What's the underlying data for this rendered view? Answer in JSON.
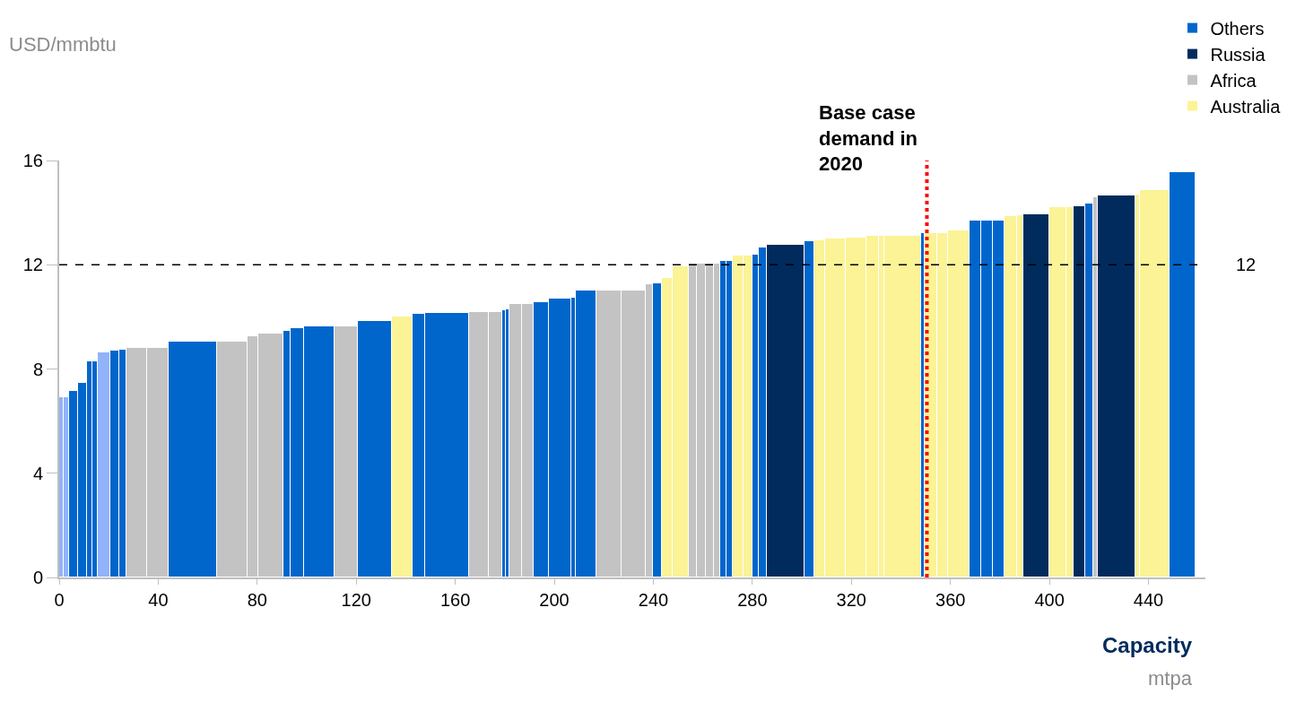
{
  "chart_data": {
    "type": "histogram",
    "ylabel": "USD/mmbtu",
    "xlabel": "Capacity",
    "annotations": [
      "mtpa"
    ],
    "bins": [
      0,
      1.8,
      4.0,
      7.5,
      11.1,
      13.3,
      15.5,
      20.5,
      24.1,
      27.0,
      35.6,
      44.2,
      63.6,
      76.2,
      80.5,
      90.6,
      93.5,
      98.8,
      111.1,
      120.8,
      134.4,
      142.7,
      147.7,
      165.7,
      173.6,
      179.0,
      180.4,
      181.9,
      186.9,
      191.6,
      197.7,
      207.0,
      208.5,
      217.1,
      227.2,
      236.9,
      239.8,
      243.4,
      247.7,
      254.5,
      257.7,
      261.3,
      264.6,
      267.1,
      269.6,
      272.1,
      276.4,
      280.0,
      282.5,
      285.8,
      300.9,
      305.2,
      309.5,
      317.8,
      326.0,
      331.1,
      333.2,
      348.3,
      349.7,
      354.8,
      359.1,
      367.7,
      372.4,
      377.1,
      381.7,
      386.8,
      389.6,
      400.1,
      406.9,
      409.8,
      414.5,
      417.7,
      419.5,
      434.6,
      436.7,
      448.6,
      459.0
    ],
    "series": [
      {
        "name": "Others",
        "color": "#0066cc",
        "values": [
          null,
          null,
          7.15,
          7.45,
          8.3,
          8.3,
          null,
          8.7,
          8.75,
          null,
          null,
          9.05,
          null,
          null,
          null,
          9.45,
          9.55,
          9.65,
          null,
          9.85,
          null,
          10.1,
          10.15,
          null,
          null,
          10.25,
          10.3,
          null,
          null,
          10.55,
          10.7,
          10.75,
          11.0,
          null,
          null,
          null,
          11.3,
          null,
          null,
          null,
          null,
          null,
          null,
          12.15,
          12.15,
          null,
          null,
          12.4,
          12.65,
          null,
          12.9,
          null,
          null,
          null,
          null,
          null,
          null,
          13.2,
          null,
          null,
          null,
          13.7,
          13.7,
          13.7,
          null,
          null,
          null,
          null,
          null,
          null,
          14.35,
          null,
          null,
          null,
          null,
          15.55
        ]
      },
      {
        "name": "Russia",
        "color": "#002b5c",
        "values": [
          null,
          null,
          null,
          null,
          null,
          null,
          null,
          null,
          null,
          null,
          null,
          null,
          null,
          null,
          null,
          null,
          null,
          null,
          null,
          null,
          null,
          null,
          null,
          null,
          null,
          null,
          null,
          null,
          null,
          null,
          null,
          null,
          null,
          null,
          null,
          null,
          null,
          null,
          null,
          null,
          null,
          null,
          null,
          null,
          null,
          null,
          null,
          null,
          null,
          12.75,
          null,
          null,
          null,
          null,
          null,
          null,
          null,
          null,
          null,
          null,
          null,
          null,
          null,
          null,
          null,
          null,
          13.95,
          null,
          null,
          14.25,
          null,
          null,
          14.65,
          null,
          null,
          null
        ]
      },
      {
        "name": "Africa",
        "color": "#c3c3c3",
        "values": [
          null,
          null,
          null,
          null,
          null,
          null,
          null,
          null,
          null,
          8.8,
          8.8,
          null,
          9.05,
          9.25,
          9.35,
          null,
          null,
          null,
          9.65,
          null,
          null,
          null,
          null,
          10.2,
          10.2,
          null,
          null,
          10.5,
          10.5,
          null,
          null,
          null,
          null,
          11.0,
          11.0,
          11.25,
          null,
          null,
          null,
          12.05,
          12.05,
          12.05,
          12.05,
          null,
          null,
          null,
          null,
          null,
          null,
          null,
          null,
          null,
          null,
          null,
          null,
          null,
          null,
          null,
          null,
          null,
          null,
          null,
          null,
          null,
          null,
          null,
          null,
          null,
          null,
          null,
          null,
          14.6,
          null,
          null,
          null,
          null
        ]
      },
      {
        "name": "Australia",
        "color": "#fbf396",
        "values": [
          null,
          null,
          null,
          null,
          null,
          null,
          null,
          null,
          null,
          null,
          null,
          null,
          null,
          null,
          null,
          null,
          null,
          null,
          null,
          null,
          10.0,
          null,
          null,
          null,
          null,
          null,
          null,
          null,
          null,
          null,
          null,
          null,
          null,
          null,
          null,
          null,
          null,
          11.5,
          11.95,
          null,
          null,
          null,
          null,
          null,
          null,
          12.35,
          12.35,
          null,
          null,
          null,
          null,
          12.95,
          13.0,
          13.05,
          13.1,
          13.1,
          13.1,
          null,
          13.2,
          13.2,
          13.3,
          null,
          null,
          null,
          13.85,
          13.9,
          null,
          14.2,
          14.2,
          null,
          null,
          null,
          null,
          14.7,
          14.85,
          null
        ]
      },
      {
        "color": "#91b3fa",
        "values": [
          6.9,
          6.9,
          null,
          null,
          null,
          null,
          8.65,
          null,
          null,
          null,
          null,
          null,
          null,
          null,
          null,
          null,
          null,
          null,
          null,
          null,
          null,
          null,
          null,
          null,
          null,
          null,
          null,
          null,
          null,
          null,
          null,
          null,
          null,
          null,
          null,
          null,
          null,
          null,
          null,
          null,
          null,
          null,
          null,
          null,
          null,
          null,
          null,
          null,
          null,
          null,
          null,
          null,
          null,
          null,
          null,
          null,
          null,
          null,
          null,
          null,
          null,
          null,
          null,
          null,
          null,
          null,
          null,
          null,
          null,
          null,
          null,
          null,
          null,
          null,
          null,
          null
        ]
      }
    ],
    "xlim": [
      0,
      463
    ],
    "xticks": [
      0,
      40,
      80,
      120,
      160,
      200,
      240,
      280,
      320,
      360,
      400,
      440
    ],
    "ylim": [
      0,
      16
    ],
    "yticks": [
      0,
      4,
      8,
      12,
      16
    ],
    "ref_lines": [
      {
        "axis": "y",
        "value": 12,
        "label": "12",
        "color": "#000000",
        "line_style": "dashed"
      },
      {
        "axis": "x",
        "value": 350.5,
        "label": "Base case demand in 2020",
        "color": "#ff0000",
        "line_style": "dotted"
      }
    ],
    "legend": "top right"
  }
}
